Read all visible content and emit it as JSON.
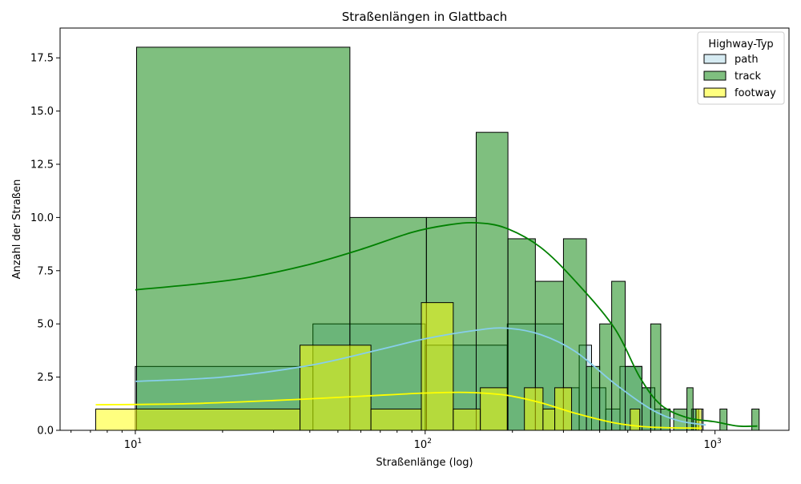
{
  "chart_data": {
    "type": "histogram",
    "title": "Straßenlängen in Glattbach",
    "xlabel": "Straßenlänge (log)",
    "ylabel": "Anzahl der Straßen",
    "x_scale": "log",
    "xlim": [
      5.5,
      1800
    ],
    "ylim": [
      0,
      18.9
    ],
    "grid": false,
    "x_ticks": [
      {
        "value": 10,
        "label": "10^1"
      },
      {
        "value": 100,
        "label": "10^2"
      },
      {
        "value": 1000,
        "label": "10^3"
      }
    ],
    "y_ticks": [
      {
        "value": 0,
        "label": "0.0"
      },
      {
        "value": 2.5,
        "label": "2.5"
      },
      {
        "value": 5,
        "label": "5.0"
      },
      {
        "value": 7.5,
        "label": "7.5"
      },
      {
        "value": 10,
        "label": "10.0"
      },
      {
        "value": 12.5,
        "label": "12.5"
      },
      {
        "value": 15,
        "label": "15.0"
      },
      {
        "value": 17.5,
        "label": "17.5"
      }
    ],
    "legend": {
      "title": "Highway-Typ",
      "position": "top-right",
      "entries": [
        {
          "name": "path",
          "color": "#add8e6"
        },
        {
          "name": "track",
          "color": "#008000"
        },
        {
          "name": "footway",
          "color": "#ffff00"
        }
      ]
    },
    "series": [
      {
        "name": "path",
        "fill": "#add8e6",
        "line": "#87ceeb",
        "bins": [
          {
            "x0": 10,
            "x1": 41,
            "count": 3
          },
          {
            "x0": 41,
            "x1": 100,
            "count": 5
          },
          {
            "x0": 100,
            "x1": 192,
            "count": 4
          },
          {
            "x0": 192,
            "x1": 300,
            "count": 5
          },
          {
            "x0": 300,
            "x1": 340,
            "count": 2
          },
          {
            "x0": 340,
            "x1": 375,
            "count": 4
          },
          {
            "x0": 375,
            "x1": 420,
            "count": 2
          },
          {
            "x0": 420,
            "x1": 470,
            "count": 1
          },
          {
            "x0": 470,
            "x1": 560,
            "count": 3
          },
          {
            "x0": 560,
            "x1": 620,
            "count": 2
          },
          {
            "x0": 620,
            "x1": 700,
            "count": 1
          },
          {
            "x0": 830,
            "x1": 910,
            "count": 1
          }
        ],
        "kde": [
          [
            10,
            2.3
          ],
          [
            20,
            2.5
          ],
          [
            40,
            3.05
          ],
          [
            70,
            3.8
          ],
          [
            100,
            4.3
          ],
          [
            150,
            4.7
          ],
          [
            190,
            4.8
          ],
          [
            250,
            4.5
          ],
          [
            330,
            3.7
          ],
          [
            450,
            2.2
          ],
          [
            600,
            1.0
          ],
          [
            750,
            0.45
          ],
          [
            930,
            0.25
          ]
        ]
      },
      {
        "name": "track",
        "fill": "#008000",
        "line": "#008000",
        "bins": [
          {
            "x0": 10.1,
            "x1": 55,
            "count": 18
          },
          {
            "x0": 55,
            "x1": 101,
            "count": 10
          },
          {
            "x0": 101,
            "x1": 150,
            "count": 10
          },
          {
            "x0": 150,
            "x1": 193,
            "count": 14
          },
          {
            "x0": 193,
            "x1": 240,
            "count": 9
          },
          {
            "x0": 240,
            "x1": 300,
            "count": 7
          },
          {
            "x0": 300,
            "x1": 360,
            "count": 9
          },
          {
            "x0": 360,
            "x1": 400,
            "count": 3
          },
          {
            "x0": 400,
            "x1": 440,
            "count": 5
          },
          {
            "x0": 440,
            "x1": 490,
            "count": 7
          },
          {
            "x0": 490,
            "x1": 560,
            "count": 3
          },
          {
            "x0": 560,
            "x1": 600,
            "count": 2
          },
          {
            "x0": 600,
            "x1": 650,
            "count": 5
          },
          {
            "x0": 650,
            "x1": 700,
            "count": 1
          },
          {
            "x0": 720,
            "x1": 800,
            "count": 1
          },
          {
            "x0": 800,
            "x1": 840,
            "count": 2
          },
          {
            "x0": 840,
            "x1": 880,
            "count": 1
          },
          {
            "x0": 1040,
            "x1": 1100,
            "count": 1
          },
          {
            "x0": 1340,
            "x1": 1420,
            "count": 1
          }
        ],
        "kde": [
          [
            10,
            6.6
          ],
          [
            17,
            6.9
          ],
          [
            25,
            7.2
          ],
          [
            40,
            7.8
          ],
          [
            60,
            8.5
          ],
          [
            90,
            9.3
          ],
          [
            120,
            9.65
          ],
          [
            150,
            9.75
          ],
          [
            190,
            9.5
          ],
          [
            250,
            8.6
          ],
          [
            330,
            7.0
          ],
          [
            450,
            4.8
          ],
          [
            550,
            2.5
          ],
          [
            650,
            1.2
          ],
          [
            800,
            0.6
          ],
          [
            1000,
            0.4
          ],
          [
            1200,
            0.2
          ],
          [
            1400,
            0.2
          ]
        ]
      },
      {
        "name": "footway",
        "fill": "#ffff00",
        "line": "#ffff00",
        "bins": [
          {
            "x0": 7.3,
            "x1": 37,
            "count": 1
          },
          {
            "x0": 37,
            "x1": 65,
            "count": 4
          },
          {
            "x0": 65,
            "x1": 97,
            "count": 1
          },
          {
            "x0": 97,
            "x1": 125,
            "count": 6
          },
          {
            "x0": 125,
            "x1": 155,
            "count": 1
          },
          {
            "x0": 155,
            "x1": 192,
            "count": 2
          },
          {
            "x0": 220,
            "x1": 255,
            "count": 2
          },
          {
            "x0": 255,
            "x1": 280,
            "count": 1
          },
          {
            "x0": 280,
            "x1": 320,
            "count": 2
          },
          {
            "x0": 510,
            "x1": 550,
            "count": 1
          },
          {
            "x0": 860,
            "x1": 900,
            "count": 1
          }
        ],
        "kde": [
          [
            7.3,
            1.2
          ],
          [
            15,
            1.25
          ],
          [
            30,
            1.4
          ],
          [
            60,
            1.6
          ],
          [
            100,
            1.75
          ],
          [
            140,
            1.78
          ],
          [
            190,
            1.65
          ],
          [
            250,
            1.3
          ],
          [
            330,
            0.8
          ],
          [
            450,
            0.35
          ],
          [
            600,
            0.15
          ],
          [
            900,
            0.1
          ]
        ]
      }
    ]
  }
}
